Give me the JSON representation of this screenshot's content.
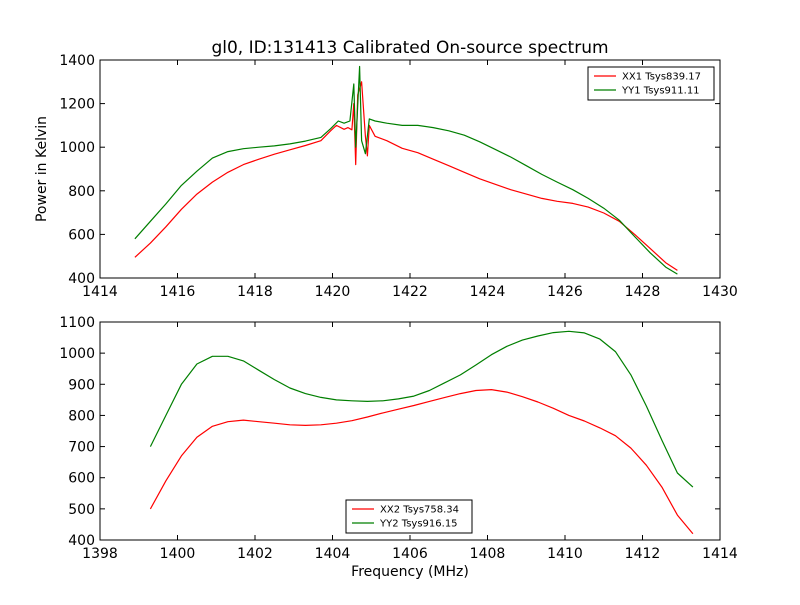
{
  "title": "gl0, ID:131413 Calibrated On-source spectrum",
  "colors": {
    "red": "#ff0000",
    "green": "#007f00"
  },
  "chart_data": [
    {
      "type": "line",
      "ylabel": "Power in Kelvin",
      "xlabel": "",
      "xlim": [
        1414,
        1430
      ],
      "ylim": [
        400,
        1400
      ],
      "xticks": [
        1414,
        1416,
        1418,
        1420,
        1422,
        1424,
        1426,
        1428,
        1430
      ],
      "yticks": [
        400,
        600,
        800,
        1000,
        1200,
        1400
      ],
      "legend_position": "top-right",
      "series": [
        {
          "name": "XX1 Tsys839.17",
          "color": "#ff0000",
          "points": [
            [
              1414.9,
              495
            ],
            [
              1415.3,
              560
            ],
            [
              1415.7,
              635
            ],
            [
              1416.1,
              715
            ],
            [
              1416.5,
              785
            ],
            [
              1416.9,
              840
            ],
            [
              1417.3,
              885
            ],
            [
              1417.7,
              920
            ],
            [
              1418.1,
              945
            ],
            [
              1418.5,
              968
            ],
            [
              1418.9,
              988
            ],
            [
              1419.3,
              1008
            ],
            [
              1419.7,
              1030
            ],
            [
              1419.95,
              1075
            ],
            [
              1420.1,
              1100
            ],
            [
              1420.3,
              1082
            ],
            [
              1420.4,
              1090
            ],
            [
              1420.5,
              1080
            ],
            [
              1420.55,
              1200
            ],
            [
              1420.6,
              920
            ],
            [
              1420.65,
              1240
            ],
            [
              1420.75,
              1300
            ],
            [
              1420.85,
              1050
            ],
            [
              1420.9,
              960
            ],
            [
              1420.95,
              1100
            ],
            [
              1421.1,
              1050
            ],
            [
              1421.4,
              1030
            ],
            [
              1421.8,
              995
            ],
            [
              1422.2,
              975
            ],
            [
              1422.6,
              945
            ],
            [
              1423.0,
              915
            ],
            [
              1423.4,
              885
            ],
            [
              1423.8,
              855
            ],
            [
              1424.2,
              830
            ],
            [
              1424.6,
              805
            ],
            [
              1425.0,
              785
            ],
            [
              1425.4,
              765
            ],
            [
              1425.8,
              752
            ],
            [
              1426.2,
              742
            ],
            [
              1426.6,
              725
            ],
            [
              1427.0,
              698
            ],
            [
              1427.4,
              660
            ],
            [
              1427.8,
              600
            ],
            [
              1428.2,
              535
            ],
            [
              1428.6,
              470
            ],
            [
              1428.9,
              435
            ]
          ]
        },
        {
          "name": "YY1 Tsys911.11",
          "color": "#007f00",
          "points": [
            [
              1414.9,
              580
            ],
            [
              1415.3,
              660
            ],
            [
              1415.7,
              740
            ],
            [
              1416.1,
              825
            ],
            [
              1416.5,
              890
            ],
            [
              1416.9,
              950
            ],
            [
              1417.3,
              980
            ],
            [
              1417.7,
              993
            ],
            [
              1418.1,
              1000
            ],
            [
              1418.5,
              1006
            ],
            [
              1418.9,
              1015
            ],
            [
              1419.3,
              1028
            ],
            [
              1419.7,
              1045
            ],
            [
              1419.95,
              1085
            ],
            [
              1420.15,
              1120
            ],
            [
              1420.3,
              1110
            ],
            [
              1420.45,
              1120
            ],
            [
              1420.55,
              1290
            ],
            [
              1420.6,
              1000
            ],
            [
              1420.7,
              1370
            ],
            [
              1420.75,
              1030
            ],
            [
              1420.85,
              970
            ],
            [
              1420.95,
              1130
            ],
            [
              1421.1,
              1120
            ],
            [
              1421.4,
              1110
            ],
            [
              1421.8,
              1100
            ],
            [
              1422.2,
              1100
            ],
            [
              1422.6,
              1090
            ],
            [
              1423.0,
              1075
            ],
            [
              1423.4,
              1055
            ],
            [
              1423.8,
              1025
            ],
            [
              1424.2,
              990
            ],
            [
              1424.6,
              955
            ],
            [
              1425.0,
              915
            ],
            [
              1425.4,
              875
            ],
            [
              1425.8,
              840
            ],
            [
              1426.2,
              805
            ],
            [
              1426.6,
              765
            ],
            [
              1427.0,
              720
            ],
            [
              1427.4,
              665
            ],
            [
              1427.8,
              590
            ],
            [
              1428.2,
              515
            ],
            [
              1428.6,
              450
            ],
            [
              1428.9,
              418
            ]
          ]
        }
      ]
    },
    {
      "type": "line",
      "ylabel": "",
      "xlabel": "Frequency (MHz)",
      "xlim": [
        1398,
        1414
      ],
      "ylim": [
        400,
        1100
      ],
      "xticks": [
        1398,
        1400,
        1402,
        1404,
        1406,
        1408,
        1410,
        1412,
        1414
      ],
      "yticks": [
        400,
        500,
        600,
        700,
        800,
        900,
        1000,
        1100
      ],
      "legend_position": "bottom-center",
      "series": [
        {
          "name": "XX2 Tsys758.34",
          "color": "#ff0000",
          "points": [
            [
              1399.3,
              500
            ],
            [
              1399.7,
              590
            ],
            [
              1400.1,
              670
            ],
            [
              1400.5,
              730
            ],
            [
              1400.9,
              765
            ],
            [
              1401.3,
              780
            ],
            [
              1401.7,
              785
            ],
            [
              1402.1,
              780
            ],
            [
              1402.5,
              775
            ],
            [
              1402.9,
              770
            ],
            [
              1403.3,
              768
            ],
            [
              1403.7,
              770
            ],
            [
              1404.1,
              775
            ],
            [
              1404.5,
              783
            ],
            [
              1404.9,
              795
            ],
            [
              1405.3,
              808
            ],
            [
              1405.7,
              820
            ],
            [
              1406.1,
              832
            ],
            [
              1406.5,
              845
            ],
            [
              1406.9,
              858
            ],
            [
              1407.3,
              870
            ],
            [
              1407.7,
              880
            ],
            [
              1408.1,
              883
            ],
            [
              1408.5,
              875
            ],
            [
              1408.9,
              860
            ],
            [
              1409.3,
              843
            ],
            [
              1409.7,
              823
            ],
            [
              1410.1,
              800
            ],
            [
              1410.5,
              782
            ],
            [
              1410.9,
              760
            ],
            [
              1411.3,
              735
            ],
            [
              1411.7,
              695
            ],
            [
              1412.1,
              640
            ],
            [
              1412.5,
              570
            ],
            [
              1412.9,
              480
            ],
            [
              1413.3,
              420
            ]
          ]
        },
        {
          "name": "YY2 Tsys916.15",
          "color": "#007f00",
          "points": [
            [
              1399.3,
              700
            ],
            [
              1399.7,
              800
            ],
            [
              1400.1,
              900
            ],
            [
              1400.5,
              965
            ],
            [
              1400.9,
              990
            ],
            [
              1401.3,
              990
            ],
            [
              1401.7,
              975
            ],
            [
              1402.1,
              945
            ],
            [
              1402.5,
              915
            ],
            [
              1402.9,
              888
            ],
            [
              1403.3,
              870
            ],
            [
              1403.7,
              858
            ],
            [
              1404.1,
              850
            ],
            [
              1404.5,
              847
            ],
            [
              1404.9,
              845
            ],
            [
              1405.3,
              847
            ],
            [
              1405.7,
              853
            ],
            [
              1406.1,
              862
            ],
            [
              1406.5,
              880
            ],
            [
              1406.9,
              905
            ],
            [
              1407.3,
              930
            ],
            [
              1407.7,
              962
            ],
            [
              1408.1,
              995
            ],
            [
              1408.5,
              1022
            ],
            [
              1408.9,
              1042
            ],
            [
              1409.3,
              1055
            ],
            [
              1409.7,
              1066
            ],
            [
              1410.1,
              1070
            ],
            [
              1410.5,
              1065
            ],
            [
              1410.9,
              1045
            ],
            [
              1411.3,
              1005
            ],
            [
              1411.7,
              930
            ],
            [
              1412.1,
              830
            ],
            [
              1412.5,
              720
            ],
            [
              1412.9,
              615
            ],
            [
              1413.3,
              570
            ]
          ]
        }
      ]
    }
  ]
}
